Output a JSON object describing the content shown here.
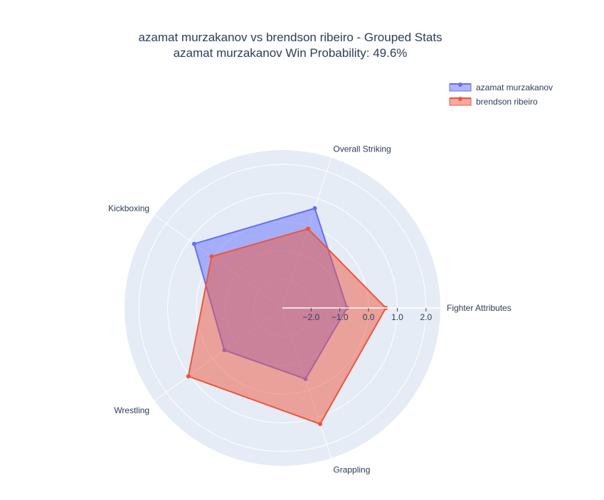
{
  "chart_data": {
    "type": "radar",
    "title": "azamat murzakanov vs brendson ribeiro - Grouped Stats",
    "subtitle": "azamat murzakanov Win Probability: 49.6%",
    "categories": [
      "Fighter Attributes",
      "Overall Striking",
      "Kickboxing",
      "Wrestling",
      "Grappling"
    ],
    "radial_range": [
      -3,
      2.5
    ],
    "radial_ticks": [
      -2,
      -1,
      0,
      1,
      2
    ],
    "radial_tick_labels": [
      "−2.0",
      "−1.0",
      "0.0",
      "1.0",
      "2.0"
    ],
    "legend_position": "top-right",
    "series": [
      {
        "name": "azamat murzakanov",
        "color": "#636efa",
        "values": [
          -0.75,
          0.65,
          0.8,
          -0.5,
          -0.4
        ]
      },
      {
        "name": "brendson ribeiro",
        "color": "#ef553b",
        "values": [
          0.6,
          -0.1,
          0.05,
          1.05,
          1.25
        ]
      }
    ]
  }
}
